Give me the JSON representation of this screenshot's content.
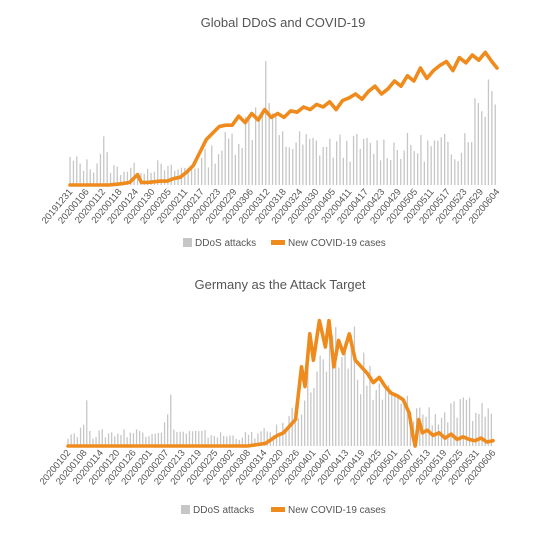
{
  "chart_data": [
    {
      "type": "bar+line",
      "title": "Global DDoS and COVID-19",
      "tick_labels": [
        "20191231",
        "20200106",
        "20200112",
        "20200118",
        "20200124",
        "20200130",
        "20200205",
        "20200211",
        "20200217",
        "20200223",
        "20200229",
        "20200306",
        "20200312",
        "20200318",
        "20200324",
        "20200330",
        "20200405",
        "20200411",
        "20200417",
        "20200423",
        "20200429",
        "20200505",
        "20200511",
        "20200517",
        "20200523",
        "20200529",
        "20200604"
      ],
      "x_start": "20191231",
      "x_end": "20200609",
      "legend": [
        {
          "name": "DDoS attacks",
          "kind": "bar",
          "color": "#c6c6c6"
        },
        {
          "name": "New COVID-19 cases",
          "kind": "line",
          "color": "#ee8b1c"
        }
      ],
      "y_axis_labels": "none",
      "grid": false,
      "legend_placement": "bottom",
      "series": [
        {
          "name": "DDoS attacks",
          "profile": [
            [
              0,
              0.19
            ],
            [
              10,
              0.16
            ],
            [
              20,
              0.15
            ],
            [
              25,
              0.36
            ],
            [
              30,
              0.14
            ],
            [
              40,
              0.12
            ],
            [
              50,
              0.13
            ],
            [
              60,
              0.13
            ],
            [
              66,
              0.16
            ],
            [
              70,
              0.13
            ],
            [
              80,
              0.12
            ],
            [
              90,
              0.13
            ],
            [
              95,
              0.15
            ],
            [
              100,
              0.18
            ],
            [
              120,
              0.32
            ],
            [
              140,
              0.5
            ],
            [
              150,
              0.85
            ],
            [
              160,
              0.35
            ],
            [
              200,
              0.3
            ],
            [
              300,
              0.3
            ],
            [
              329,
              0.95
            ]
          ]
        },
        {
          "name": "New COVID-19 cases",
          "points": [
            [
              0,
              0.0
            ],
            [
              30,
              0.0
            ],
            [
              40,
              0.01
            ],
            [
              46,
              0.02
            ],
            [
              52,
              0.08
            ],
            [
              55,
              0.02
            ],
            [
              60,
              0.02
            ],
            [
              70,
              0.03
            ],
            [
              75,
              0.03
            ],
            [
              80,
              0.05
            ],
            [
              85,
              0.06
            ],
            [
              90,
              0.1
            ],
            [
              95,
              0.15
            ],
            [
              100,
              0.25
            ],
            [
              105,
              0.35
            ],
            [
              110,
              0.4
            ],
            [
              115,
              0.45
            ],
            [
              120,
              0.46
            ],
            [
              125,
              0.46
            ],
            [
              130,
              0.53
            ],
            [
              135,
              0.48
            ],
            [
              140,
              0.55
            ],
            [
              145,
              0.5
            ],
            [
              150,
              0.58
            ],
            [
              155,
              0.52
            ],
            [
              160,
              0.55
            ],
            [
              165,
              0.52
            ],
            [
              170,
              0.57
            ],
            [
              175,
              0.56
            ],
            [
              180,
              0.6
            ],
            [
              185,
              0.58
            ],
            [
              190,
              0.62
            ],
            [
              195,
              0.6
            ],
            [
              200,
              0.64
            ],
            [
              205,
              0.58
            ],
            [
              210,
              0.65
            ],
            [
              215,
              0.67
            ],
            [
              220,
              0.7
            ],
            [
              225,
              0.66
            ],
            [
              230,
              0.72
            ],
            [
              235,
              0.76
            ],
            [
              240,
              0.7
            ],
            [
              245,
              0.74
            ],
            [
              250,
              0.8
            ],
            [
              255,
              0.76
            ],
            [
              260,
              0.84
            ],
            [
              265,
              0.8
            ],
            [
              270,
              0.9
            ],
            [
              275,
              0.82
            ],
            [
              280,
              0.88
            ],
            [
              285,
              0.92
            ],
            [
              290,
              0.95
            ],
            [
              295,
              0.88
            ],
            [
              300,
              0.98
            ],
            [
              305,
              0.94
            ],
            [
              310,
              1.0
            ],
            [
              315,
              0.96
            ],
            [
              320,
              1.02
            ],
            [
              325,
              0.95
            ],
            [
              329,
              0.9
            ]
          ]
        }
      ]
    },
    {
      "type": "bar+line",
      "title": "Germany as the Attack Target",
      "tick_labels": [
        "20200102",
        "20200108",
        "20200114",
        "20200120",
        "20200126",
        "20200201",
        "20200207",
        "20200213",
        "20200219",
        "20200225",
        "20200302",
        "20200308",
        "20200314",
        "20200320",
        "20200326",
        "20200401",
        "20200407",
        "20200413",
        "20200419",
        "20200425",
        "20200501",
        "20200507",
        "20200513",
        "20200519",
        "20200525",
        "20200531",
        "20200606"
      ],
      "x_start": "20200102",
      "x_end": "20200609",
      "legend": [
        {
          "name": "DDoS attacks",
          "kind": "bar",
          "color": "#c6c6c6"
        },
        {
          "name": "New COVID-19 cases",
          "kind": "line",
          "color": "#ee8b1c"
        }
      ],
      "y_axis_labels": "none",
      "grid": false,
      "legend_placement": "bottom",
      "series": [
        {
          "name": "DDoS attacks",
          "profile": [
            [
              0,
              0.1
            ],
            [
              10,
              0.12
            ],
            [
              16,
              0.3
            ],
            [
              20,
              0.1
            ],
            [
              60,
              0.12
            ],
            [
              80,
              0.15
            ],
            [
              86,
              0.35
            ],
            [
              90,
              0.12
            ],
            [
              140,
              0.08
            ],
            [
              160,
              0.1
            ],
            [
              180,
              0.15
            ],
            [
              195,
              0.4
            ],
            [
              205,
              0.6
            ],
            [
              220,
              0.7
            ],
            [
              230,
              0.8
            ],
            [
              240,
              0.85
            ],
            [
              250,
              0.55
            ],
            [
              270,
              0.4
            ],
            [
              290,
              0.3
            ],
            [
              310,
              0.25
            ],
            [
              330,
              0.3
            ]
          ]
        },
        {
          "name": "New COVID-19 cases",
          "points": [
            [
              0,
              0.0
            ],
            [
              150,
              0.0
            ],
            [
              165,
              0.02
            ],
            [
              170,
              0.05
            ],
            [
              175,
              0.08
            ],
            [
              180,
              0.1
            ],
            [
              185,
              0.15
            ],
            [
              190,
              0.2
            ],
            [
              195,
              0.6
            ],
            [
              198,
              0.45
            ],
            [
              202,
              0.85
            ],
            [
              205,
              0.65
            ],
            [
              210,
              0.95
            ],
            [
              215,
              0.75
            ],
            [
              218,
              0.95
            ],
            [
              222,
              0.6
            ],
            [
              226,
              0.8
            ],
            [
              230,
              0.7
            ],
            [
              235,
              0.85
            ],
            [
              240,
              0.65
            ],
            [
              245,
              0.6
            ],
            [
              250,
              0.55
            ],
            [
              255,
              0.48
            ],
            [
              260,
              0.52
            ],
            [
              265,
              0.45
            ],
            [
              270,
              0.4
            ],
            [
              275,
              0.38
            ],
            [
              280,
              0.35
            ],
            [
              285,
              0.25
            ],
            [
              288,
              0.08
            ],
            [
              290,
              0.0
            ],
            [
              293,
              0.2
            ],
            [
              296,
              0.1
            ],
            [
              300,
              0.12
            ],
            [
              305,
              0.08
            ],
            [
              310,
              0.1
            ],
            [
              315,
              0.06
            ],
            [
              320,
              0.09
            ],
            [
              325,
              0.05
            ],
            [
              330,
              0.07
            ],
            [
              335,
              0.05
            ],
            [
              340,
              0.04
            ],
            [
              345,
              0.06
            ],
            [
              350,
              0.03
            ],
            [
              355,
              0.04
            ]
          ]
        }
      ]
    }
  ]
}
